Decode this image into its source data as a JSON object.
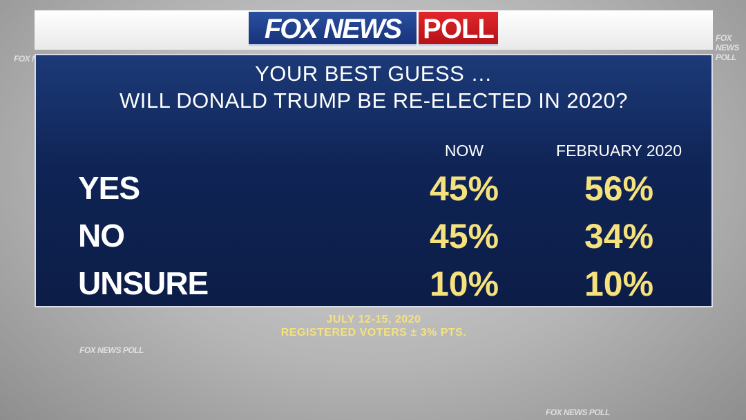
{
  "header": {
    "brand": "FOX NEWS",
    "badge": "POLL"
  },
  "watermark": "FOX NEWS POLL",
  "question": {
    "line1": "YOUR BEST GUESS …",
    "line2": "WILL DONALD TRUMP BE RE-ELECTED IN 2020?"
  },
  "table": {
    "columns": [
      "NOW",
      "FEBRUARY 2020"
    ],
    "rows": [
      {
        "label": "YES",
        "cells": [
          "45%",
          "56%"
        ]
      },
      {
        "label": "NO",
        "cells": [
          "45%",
          "34%"
        ]
      },
      {
        "label": "UNSURE",
        "cells": [
          "10%",
          "10%"
        ]
      }
    ]
  },
  "footer": {
    "date": "JULY 12-15, 2020",
    "sample": "REGISTERED VOTERS ± 3% PTS."
  }
}
